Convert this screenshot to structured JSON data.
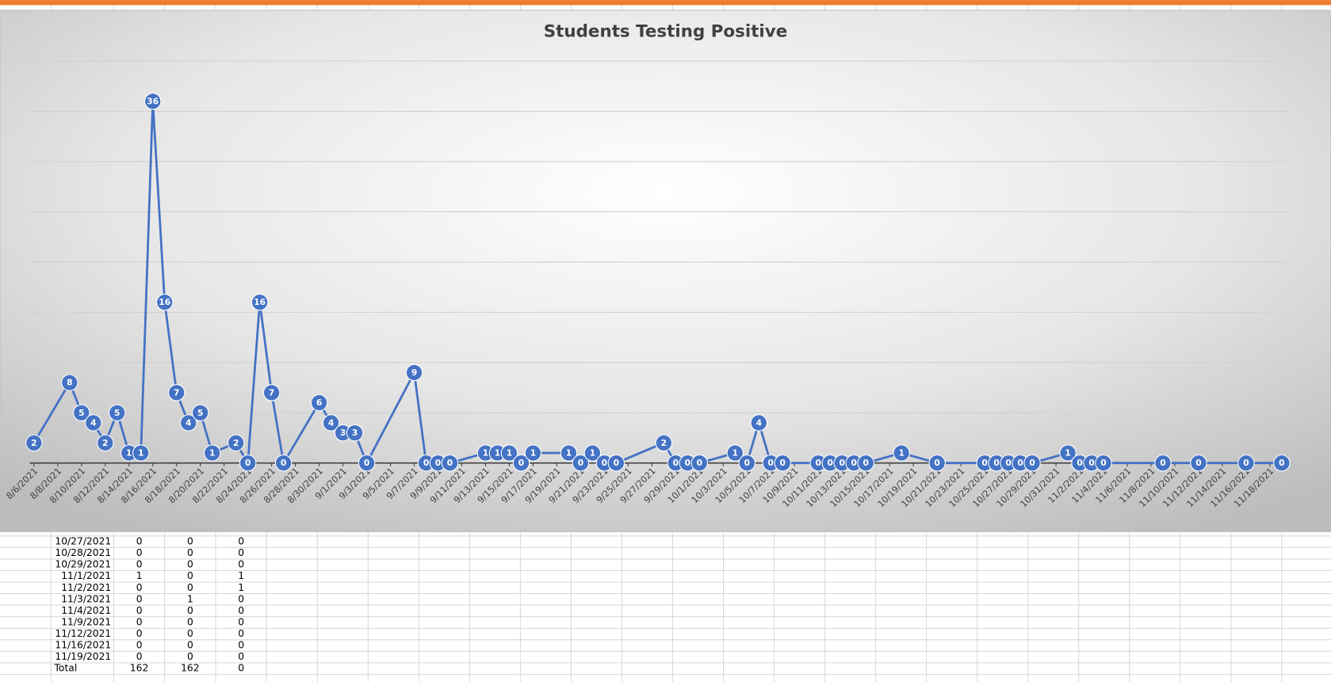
{
  "chart_data": {
    "type": "line",
    "title": "Students Testing Positive",
    "x": [
      "8/6/2021",
      "8/9/2021",
      "8/10/2021",
      "8/11/2021",
      "8/12/2021",
      "8/13/2021",
      "8/14/2021",
      "8/15/2021",
      "8/16/2021",
      "8/17/2021",
      "8/18/2021",
      "8/19/2021",
      "8/20/2021",
      "8/21/2021",
      "8/23/2021",
      "8/24/2021",
      "8/25/2021",
      "8/26/2021",
      "8/27/2021",
      "8/30/2021",
      "8/31/2021",
      "9/1/2021",
      "9/2/2021",
      "9/3/2021",
      "9/7/2021",
      "9/8/2021",
      "9/9/2021",
      "9/10/2021",
      "9/13/2021",
      "9/14/2021",
      "9/15/2021",
      "9/16/2021",
      "9/17/2021",
      "9/20/2021",
      "9/21/2021",
      "9/22/2021",
      "9/23/2021",
      "9/24/2021",
      "9/28/2021",
      "9/29/2021",
      "9/30/2021",
      "10/1/2021",
      "10/4/2021",
      "10/5/2021",
      "10/6/2021",
      "10/7/2021",
      "10/8/2021",
      "10/11/2021",
      "10/12/2021",
      "10/13/2021",
      "10/14/2021",
      "10/15/2021",
      "10/18/2021",
      "10/21/2021",
      "10/25/2021",
      "10/26/2021",
      "10/27/2021",
      "10/28/2021",
      "10/29/2021",
      "11/1/2021",
      "11/2/2021",
      "11/3/2021",
      "11/4/2021",
      "11/9/2021",
      "11/12/2021",
      "11/16/2021",
      "11/19/2021"
    ],
    "series": [
      {
        "name": "Students Testing Positive",
        "color": "#4472c4",
        "values": [
          2,
          8,
          5,
          4,
          2,
          5,
          1,
          1,
          36,
          16,
          7,
          4,
          5,
          1,
          2,
          0,
          16,
          7,
          0,
          6,
          4,
          3,
          3,
          0,
          9,
          0,
          0,
          0,
          1,
          1,
          1,
          0,
          1,
          1,
          0,
          1,
          0,
          0,
          2,
          0,
          0,
          0,
          1,
          0,
          4,
          0,
          0,
          0,
          0,
          0,
          0,
          0,
          1,
          0,
          0,
          0,
          0,
          0,
          0,
          1,
          0,
          0,
          0,
          0,
          0,
          0,
          0
        ]
      }
    ],
    "xlim": [
      "8/6/2021",
      "11/19/2021"
    ],
    "xticks": [
      "8/6/2021",
      "8/8/2021",
      "8/10/2021",
      "8/12/2021",
      "8/14/2021",
      "8/16/2021",
      "8/18/2021",
      "8/20/2021",
      "8/22/2021",
      "8/24/2021",
      "8/26/2021",
      "8/28/2021",
      "8/30/2021",
      "9/1/2021",
      "9/3/2021",
      "9/5/2021",
      "9/7/2021",
      "9/9/2021",
      "9/11/2021",
      "9/13/2021",
      "9/15/2021",
      "9/17/2021",
      "9/19/2021",
      "9/21/2021",
      "9/23/2021",
      "9/25/2021",
      "9/27/2021",
      "9/29/2021",
      "10/1/2021",
      "10/3/2021",
      "10/5/2021",
      "10/7/2021",
      "10/9/2021",
      "10/11/2021",
      "10/13/2021",
      "10/15/2021",
      "10/17/2021",
      "10/19/2021",
      "10/21/2021",
      "10/23/2021",
      "10/25/2021",
      "10/27/2021",
      "10/29/2021",
      "10/31/2021",
      "11/2/2021",
      "11/4/2021",
      "11/6/2021",
      "11/8/2021",
      "11/10/2021",
      "11/12/2021",
      "11/14/2021",
      "11/16/2021",
      "11/18/2021"
    ],
    "ylim": [
      0,
      40
    ],
    "yticks": [
      0,
      5,
      10,
      15,
      20,
      25,
      30,
      35,
      40
    ],
    "grid": true
  },
  "table": {
    "rows": [
      [
        "10/27/2021",
        0,
        0,
        0
      ],
      [
        "10/28/2021",
        0,
        0,
        0
      ],
      [
        "10/29/2021",
        0,
        0,
        0
      ],
      [
        "11/1/2021",
        1,
        0,
        1
      ],
      [
        "11/2/2021",
        0,
        0,
        1
      ],
      [
        "11/3/2021",
        0,
        1,
        0
      ],
      [
        "11/4/2021",
        0,
        0,
        0
      ],
      [
        "11/9/2021",
        0,
        0,
        0
      ],
      [
        "11/12/2021",
        0,
        0,
        0
      ],
      [
        "11/16/2021",
        0,
        0,
        0
      ],
      [
        "11/19/2021",
        0,
        0,
        0
      ],
      [
        "Total",
        162,
        162,
        0
      ]
    ]
  }
}
